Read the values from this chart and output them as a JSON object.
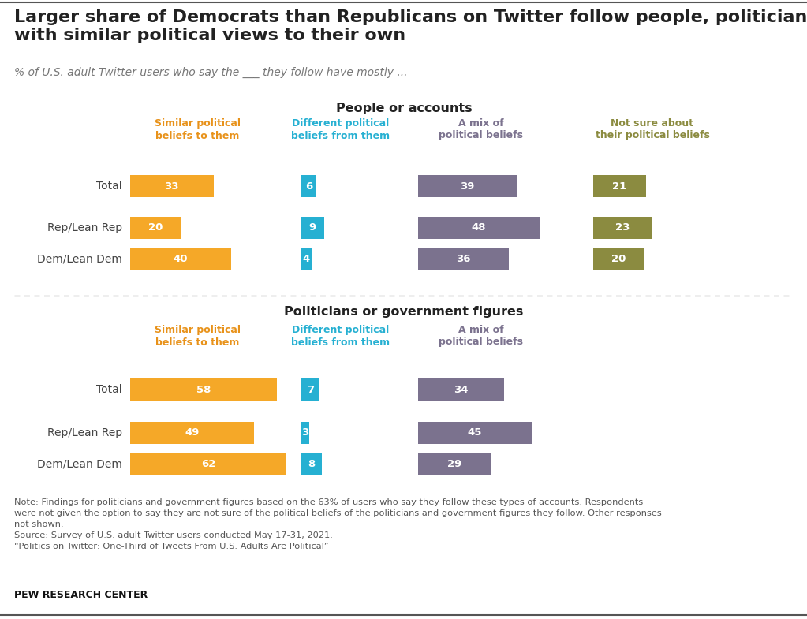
{
  "title": "Larger share of Democrats than Republicans on Twitter follow people, politicians\nwith similar political views to their own",
  "subtitle": "% of U.S. adult Twitter users who say the ___ they follow have mostly ...",
  "section1_title": "People or accounts",
  "section2_title": "Politicians or government figures",
  "col_headers_1": {
    "similar": "Similar political\nbeliefs to them",
    "different": "Different political\nbeliefs from them",
    "mix": "A mix of\npolitical beliefs",
    "notsure": "Not sure about\ntheir political beliefs"
  },
  "col_headers_2": {
    "similar": "Similar political\nbeliefs to them",
    "different": "Different political\nbeliefs from them",
    "mix": "A mix of\npolitical beliefs"
  },
  "rows": [
    "Total",
    "Rep/Lean Rep",
    "Dem/Lean Dem"
  ],
  "section1_data": {
    "similar": [
      33,
      20,
      40
    ],
    "different": [
      6,
      9,
      4
    ],
    "mix": [
      39,
      48,
      36
    ],
    "notsure": [
      21,
      23,
      20
    ]
  },
  "section2_data": {
    "similar": [
      58,
      49,
      62
    ],
    "different": [
      7,
      3,
      8
    ],
    "mix": [
      34,
      45,
      29
    ]
  },
  "bar_colors": {
    "similar": "#F5A828",
    "different": "#26B0D2",
    "mix": "#7B728E",
    "notsure": "#8B8B40"
  },
  "header_colors": {
    "similar": "#E8921A",
    "different": "#26B0D2",
    "mix": "#7B728E",
    "notsure": "#8B8B40"
  },
  "note_line1": "Note: Findings for politicians and government figures based on the 63% of users who say they follow these types of accounts. Respondents",
  "note_line2": "were not given the option to say they are not sure of the political beliefs of the politicians and government figures they follow. Other responses",
  "note_line3": "not shown.",
  "note_line4": "Source: Survey of U.S. adult Twitter users conducted May 17-31, 2021.",
  "note_line5": "“Politics on Twitter: One-Third of Tweets From U.S. Adults Are Political”",
  "footer": "PEW RESEARCH CENTER",
  "bg_color": "#FFFFFF",
  "text_color": "#222222",
  "note_color": "#555555"
}
